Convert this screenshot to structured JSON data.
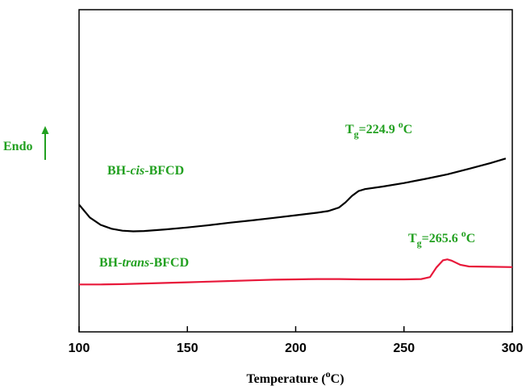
{
  "chart_data": {
    "type": "line",
    "xlabel_main": "Temperature (",
    "xlabel_sup": "o",
    "xlabel_end": "C)",
    "ylabel": "Endo",
    "xlim": [
      100,
      300
    ],
    "xticks": [
      100,
      150,
      200,
      250,
      300
    ],
    "grid": false,
    "colors": {
      "cis": "#000000",
      "trans": "#e8183a",
      "annotation": "#22a020"
    },
    "series": [
      {
        "name_pre": "BH-",
        "name_italic": "cis",
        "name_post": "-BFCD",
        "color": "#000000",
        "points": [
          [
            100,
            0.605
          ],
          [
            105,
            0.645
          ],
          [
            110,
            0.668
          ],
          [
            115,
            0.68
          ],
          [
            120,
            0.686
          ],
          [
            125,
            0.688
          ],
          [
            130,
            0.687
          ],
          [
            140,
            0.682
          ],
          [
            150,
            0.676
          ],
          [
            160,
            0.669
          ],
          [
            170,
            0.661
          ],
          [
            180,
            0.654
          ],
          [
            190,
            0.646
          ],
          [
            200,
            0.638
          ],
          [
            210,
            0.63
          ],
          [
            215,
            0.625
          ],
          [
            220,
            0.614
          ],
          [
            223,
            0.598
          ],
          [
            226,
            0.578
          ],
          [
            229,
            0.563
          ],
          [
            232,
            0.557
          ],
          [
            240,
            0.549
          ],
          [
            250,
            0.538
          ],
          [
            260,
            0.525
          ],
          [
            270,
            0.511
          ],
          [
            280,
            0.494
          ],
          [
            290,
            0.476
          ],
          [
            297,
            0.462
          ]
        ]
      },
      {
        "name_pre": "BH-",
        "name_italic": "trans",
        "name_post": "-BFCD",
        "color": "#e8183a",
        "points": [
          [
            100,
            0.853
          ],
          [
            110,
            0.853
          ],
          [
            120,
            0.852
          ],
          [
            130,
            0.85
          ],
          [
            140,
            0.848
          ],
          [
            150,
            0.846
          ],
          [
            160,
            0.844
          ],
          [
            170,
            0.842
          ],
          [
            180,
            0.84
          ],
          [
            190,
            0.838
          ],
          [
            200,
            0.837
          ],
          [
            210,
            0.836
          ],
          [
            220,
            0.836
          ],
          [
            230,
            0.837
          ],
          [
            240,
            0.837
          ],
          [
            250,
            0.837
          ],
          [
            258,
            0.836
          ],
          [
            262,
            0.83
          ],
          [
            265,
            0.8
          ],
          [
            268,
            0.778
          ],
          [
            270,
            0.775
          ],
          [
            272,
            0.779
          ],
          [
            276,
            0.792
          ],
          [
            280,
            0.797
          ],
          [
            290,
            0.798
          ],
          [
            300,
            0.799
          ]
        ]
      }
    ],
    "annotations": [
      {
        "base": "T",
        "sub": "g",
        "value": "=224.9 ",
        "sup": "o",
        "unit": "C"
      },
      {
        "base": "T",
        "sub": "g",
        "value": "=265.6 ",
        "sup": "o",
        "unit": "C"
      }
    ]
  }
}
